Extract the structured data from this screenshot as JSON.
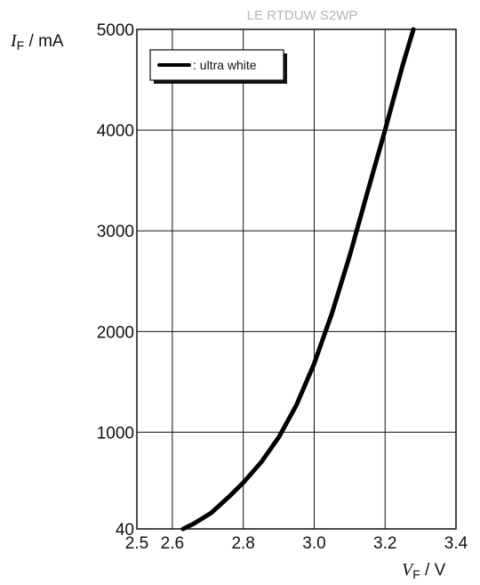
{
  "chart_data": {
    "type": "line",
    "title": "LE RTDUW S2WP",
    "xlabel": {
      "symbol": "V",
      "subscript": "F",
      "unit": " / V"
    },
    "ylabel": {
      "symbol": "I",
      "subscript": "F",
      "unit": " / mA"
    },
    "xlim": [
      2.5,
      3.4
    ],
    "ylim": [
      40,
      5000
    ],
    "x_ticks": [
      {
        "value": 2.5,
        "label": "2.5"
      },
      {
        "value": 2.6,
        "label": "2.6"
      },
      {
        "value": 2.8,
        "label": "2.8"
      },
      {
        "value": 3.0,
        "label": "3.0"
      },
      {
        "value": 3.2,
        "label": "3.2"
      },
      {
        "value": 3.4,
        "label": "3.4"
      }
    ],
    "x_grid": [
      2.6,
      2.8,
      3.0,
      3.2
    ],
    "y_ticks": [
      {
        "value": 40,
        "label": "40"
      },
      {
        "value": 1000,
        "label": "1000"
      },
      {
        "value": 2000,
        "label": "2000"
      },
      {
        "value": 3000,
        "label": "3000"
      },
      {
        "value": 4000,
        "label": "4000"
      },
      {
        "value": 5000,
        "label": "5000"
      }
    ],
    "grid": true,
    "legend_position": "top-left",
    "series": [
      {
        "name": ": ultra white",
        "color": "#000000",
        "x": [
          2.63,
          2.66,
          2.71,
          2.76,
          2.8,
          2.85,
          2.9,
          2.95,
          3.0,
          3.05,
          3.1,
          3.15,
          3.2,
          3.25,
          3.28
        ],
        "y": [
          40,
          90,
          200,
          360,
          500,
          700,
          950,
          1270,
          1680,
          2180,
          2750,
          3380,
          4000,
          4650,
          5000
        ]
      }
    ]
  }
}
